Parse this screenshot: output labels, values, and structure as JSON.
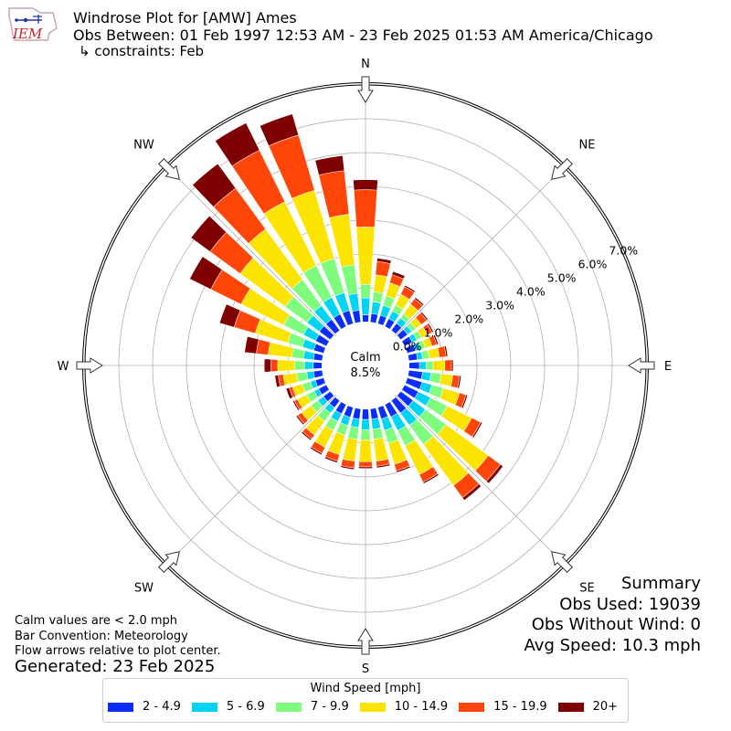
{
  "header": {
    "logo_text": "IEM",
    "title": "Windrose Plot for [AMW] Ames",
    "subtitle": "Obs Between: 01 Feb 1997 12:53 AM - 23 Feb 2025 01:53 AM America/Chicago",
    "constraints": "↳ constraints: Feb"
  },
  "summary": {
    "heading": "Summary",
    "obs_used": "Obs Used: 19039",
    "obs_without_wind": "Obs Without Wind: 0",
    "avg_speed": "Avg Speed: 10.3 mph"
  },
  "notes": {
    "calm_def": "Calm values are < 2.0 mph",
    "bar_convention": "Bar Convention: Meteorology",
    "flow_arrows": "Flow arrows relative to plot center.",
    "generated": "Generated: 23 Feb 2025"
  },
  "chart_data": {
    "type": "windrose",
    "calm_label": "Calm",
    "calm_value": "8.5%",
    "calm_percent": 8.5,
    "radial_ticks": [
      "0.0%",
      "1.0%",
      "2.0%",
      "3.0%",
      "4.0%",
      "5.0%",
      "6.0%",
      "7.0%"
    ],
    "rmax": 7.0,
    "compass_labels": [
      "N",
      "NE",
      "E",
      "SE",
      "S",
      "SW",
      "W",
      "NW"
    ],
    "compass_angles": [
      0,
      45,
      90,
      135,
      180,
      225,
      270,
      315
    ],
    "legend_title": "Wind Speed [mph]",
    "bins": [
      {
        "label": "2 - 4.9",
        "color": "#0a2dfa"
      },
      {
        "label": "5 - 6.9",
        "color": "#00d4f4"
      },
      {
        "label": "7 - 9.9",
        "color": "#7dfc7d"
      },
      {
        "label": "10 - 14.9",
        "color": "#fde400"
      },
      {
        "label": "15 - 19.9",
        "color": "#ff4507"
      },
      {
        "label": "20+",
        "color": "#7f0000"
      }
    ],
    "directions": [
      0,
      10,
      20,
      30,
      40,
      50,
      60,
      70,
      80,
      90,
      100,
      110,
      120,
      130,
      140,
      150,
      160,
      170,
      180,
      190,
      200,
      210,
      220,
      230,
      240,
      250,
      260,
      270,
      280,
      290,
      300,
      310,
      320,
      330,
      340,
      350
    ],
    "cumulative_percent": [
      [
        0.2,
        0.7,
        1.1,
        2.8,
        3.9,
        4.2
      ],
      [
        0.25,
        0.6,
        0.9,
        1.4,
        1.8,
        1.9
      ],
      [
        0.25,
        0.55,
        0.85,
        1.25,
        1.5,
        1.6
      ],
      [
        0.25,
        0.5,
        0.7,
        1.05,
        1.3,
        1.35
      ],
      [
        0.25,
        0.45,
        0.6,
        0.95,
        1.15,
        1.2
      ],
      [
        0.25,
        0.4,
        0.55,
        0.75,
        0.95,
        1.0
      ],
      [
        0.25,
        0.4,
        0.55,
        0.75,
        0.9,
        0.95
      ],
      [
        0.25,
        0.4,
        0.55,
        0.75,
        0.9,
        0.95
      ],
      [
        0.25,
        0.4,
        0.6,
        0.9,
        1.1,
        1.15
      ],
      [
        0.3,
        0.5,
        0.7,
        1.05,
        1.25,
        1.3
      ],
      [
        0.4,
        0.65,
        0.95,
        1.3,
        1.5,
        1.55
      ],
      [
        0.45,
        0.75,
        1.1,
        1.6,
        1.8,
        1.85
      ],
      [
        0.45,
        0.85,
        1.4,
        2.2,
        2.5,
        2.55
      ],
      [
        0.45,
        0.9,
        1.65,
        3.2,
        3.65,
        3.75
      ],
      [
        0.45,
        0.9,
        1.6,
        3.1,
        3.55,
        3.65
      ],
      [
        0.4,
        0.85,
        1.35,
        2.3,
        2.55,
        2.6
      ],
      [
        0.35,
        0.7,
        1.1,
        1.75,
        1.95,
        2.0
      ],
      [
        0.3,
        0.6,
        0.9,
        1.55,
        1.7,
        1.75
      ],
      [
        0.3,
        0.6,
        0.9,
        1.55,
        1.7,
        1.75
      ],
      [
        0.3,
        0.55,
        0.9,
        1.55,
        1.75,
        1.8
      ],
      [
        0.3,
        0.55,
        0.85,
        1.45,
        1.65,
        1.7
      ],
      [
        0.3,
        0.55,
        0.85,
        1.4,
        1.6,
        1.65
      ],
      [
        0.25,
        0.45,
        0.75,
        1.25,
        1.4,
        1.45
      ],
      [
        0.25,
        0.45,
        0.7,
        1.05,
        1.2,
        1.25
      ],
      [
        0.25,
        0.4,
        0.65,
        0.95,
        1.05,
        1.1
      ],
      [
        0.25,
        0.4,
        0.65,
        0.95,
        1.05,
        1.15
      ],
      [
        0.25,
        0.45,
        0.75,
        1.15,
        1.3,
        1.4
      ],
      [
        0.25,
        0.5,
        0.8,
        1.3,
        1.5,
        1.7
      ],
      [
        0.25,
        0.55,
        0.9,
        1.6,
        1.95,
        2.3
      ],
      [
        0.3,
        0.65,
        1.1,
        2.1,
        2.75,
        3.2
      ],
      [
        0.35,
        0.75,
        1.4,
        2.8,
        3.8,
        4.5
      ],
      [
        0.4,
        0.85,
        1.65,
        3.3,
        4.4,
        5.1
      ],
      [
        0.4,
        0.9,
        1.85,
        3.7,
        5.2,
        6.1
      ],
      [
        0.4,
        0.95,
        2.0,
        4.1,
        5.8,
        6.7
      ],
      [
        0.4,
        0.95,
        2.0,
        4.1,
        5.8,
        6.45
      ],
      [
        0.35,
        0.85,
        1.7,
        3.2,
        4.5,
        4.95
      ]
    ]
  }
}
